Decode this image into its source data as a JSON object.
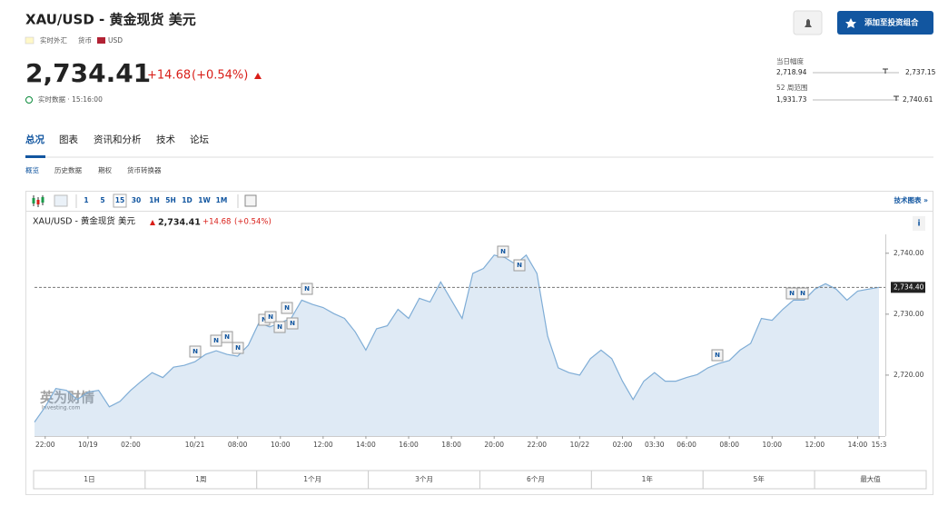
{
  "header": {
    "title": "XAU/USD - 黄金现货 美元",
    "market_status": "实时外汇",
    "asset_type": "货币",
    "currency": "USD",
    "price": "2,734.41",
    "change": "+14.68",
    "change_pct": "(+0.54%)",
    "data_status": "实时数据 · 15:16:00",
    "add_button": "添加至投资组合"
  },
  "ranges": {
    "day_label": "当日幅度",
    "day_low": "2,718.94",
    "day_high": "2,737.15",
    "week52_label": "52 周范围",
    "week52_low": "1,931.73",
    "week52_high": "2,740.61"
  },
  "tabs": [
    "总况",
    "图表",
    "资讯和分析",
    "技术",
    "论坛"
  ],
  "subtabs": [
    "概览",
    "历史数据",
    "期权",
    "货币转换器"
  ],
  "chart_toolbar": {
    "intervals": [
      "1",
      "5",
      "15",
      "30",
      "1H",
      "5H",
      "1D",
      "1W",
      "1M"
    ],
    "technical_link": "技术图表 »"
  },
  "chart_header": {
    "title": "XAU/USD - 黄金现货 美元",
    "price": "2,734.41",
    "change": "+14.68",
    "change_pct": "(+0.54%)",
    "info": "i"
  },
  "chart_data": {
    "type": "area",
    "color": "#7fadd6",
    "categories": [
      null,
      "22:00",
      null,
      null,
      null,
      "10/19",
      null,
      null,
      null,
      "02:00",
      null,
      null,
      null,
      null,
      null,
      "10/21",
      null,
      null,
      null,
      "08:00",
      null,
      null,
      null,
      "10:00",
      null,
      null,
      null,
      "12:00",
      null,
      null,
      null,
      "14:00",
      null,
      null,
      null,
      "16:00",
      null,
      null,
      null,
      "18:00",
      null,
      null,
      null,
      "20:00",
      null,
      null,
      null,
      "22:00",
      null,
      null,
      null,
      "10/22",
      null,
      null,
      null,
      "02:00",
      null,
      null,
      "03:30",
      null,
      null,
      "06:00",
      null,
      null,
      null,
      "08:00",
      null,
      null,
      null,
      "10:00",
      null,
      null,
      null,
      "12:00",
      null,
      null,
      null,
      "14:00",
      null,
      "15:3"
    ],
    "values": [
      2712.3,
      2714.8,
      2717.8,
      2717.5,
      2716.0,
      2717.2,
      2717.5,
      2714.8,
      2715.7,
      2717.5,
      2719.0,
      2720.4,
      2719.6,
      2721.3,
      2721.6,
      2722.2,
      2723.4,
      2724.0,
      2723.4,
      2723.1,
      2724.9,
      2728.6,
      2727.9,
      2728.6,
      2729.3,
      2732.3,
      2731.6,
      2731.1,
      2730.1,
      2729.3,
      2727.1,
      2724.1,
      2727.6,
      2728.1,
      2730.8,
      2729.3,
      2732.6,
      2732.0,
      2735.3,
      2732.3,
      2729.3,
      2736.7,
      2737.5,
      2739.7,
      2739.3,
      2738.2,
      2739.7,
      2736.7,
      2726.4,
      2721.2,
      2720.4,
      2720.0,
      2722.7,
      2724.1,
      2722.7,
      2719.0,
      2716.0,
      2719.0,
      2720.4,
      2719.0,
      2719.0,
      2719.6,
      2720.1,
      2721.2,
      2721.9,
      2722.4,
      2724.1,
      2725.2,
      2729.3,
      2729.0,
      2730.8,
      2732.3,
      2732.3,
      2734.1,
      2735.0,
      2734.1,
      2732.3,
      2733.8,
      2734.1,
      2734.4
    ],
    "ylim": [
      2710,
      2742.5
    ],
    "yticks": [
      {
        "value": 2720,
        "label": "2,720.00"
      },
      {
        "value": 2730,
        "label": "2,730.00"
      },
      {
        "value": 2740,
        "label": "2,740.00"
      }
    ],
    "last_price": {
      "value": 2734.4,
      "label": "2,734.40"
    },
    "news_label": "N",
    "watermark": "英为财情",
    "watermark_sub": "Investing.com"
  },
  "range_buttons": [
    "1日",
    "1周",
    "1个月",
    "3个月",
    "6个月",
    "1年",
    "5年",
    "最大值"
  ]
}
